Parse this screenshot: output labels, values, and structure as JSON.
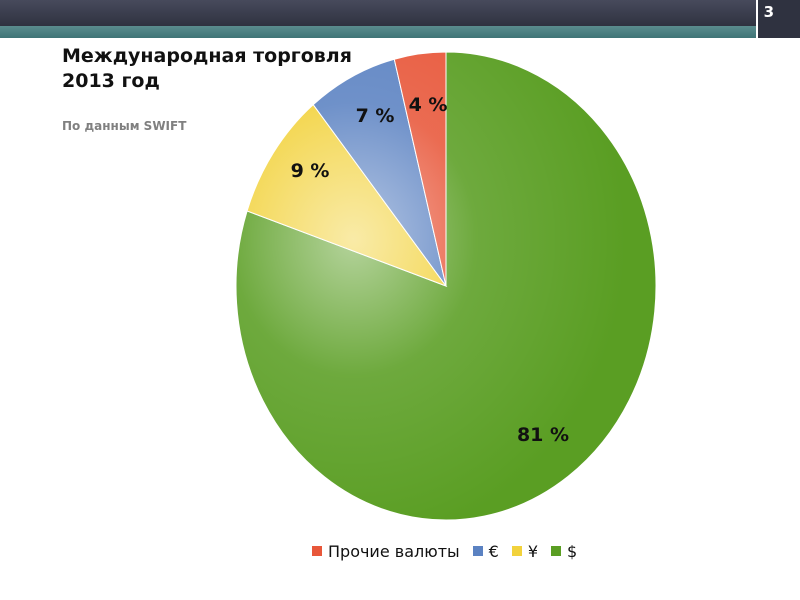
{
  "slide": {
    "page_number": "3"
  },
  "chart_data": {
    "type": "pie",
    "title": "Международная торговля 2013 год",
    "subtitle": "По данным SWIFT",
    "start": "top",
    "direction": "clockwise",
    "legend_position": "bottom",
    "slices": [
      {
        "label": "$",
        "value": 81,
        "display": "81 %",
        "color": "#5a9e23"
      },
      {
        "label": "¥",
        "value": 9,
        "display": "9 %",
        "color": "#f2d23c"
      },
      {
        "label": "€",
        "value": 7,
        "display": "7 %",
        "color": "#5b82c2"
      },
      {
        "label": "Прочие валюты",
        "value": 4,
        "display": "4 %",
        "color": "#e8573a"
      }
    ],
    "legend": [
      {
        "label": "Прочие валюты",
        "color": "#e8573a"
      },
      {
        "label": "€",
        "color": "#5b82c2"
      },
      {
        "label": "¥",
        "color": "#f2d23c"
      },
      {
        "label": "$",
        "color": "#5a9e23"
      }
    ]
  }
}
